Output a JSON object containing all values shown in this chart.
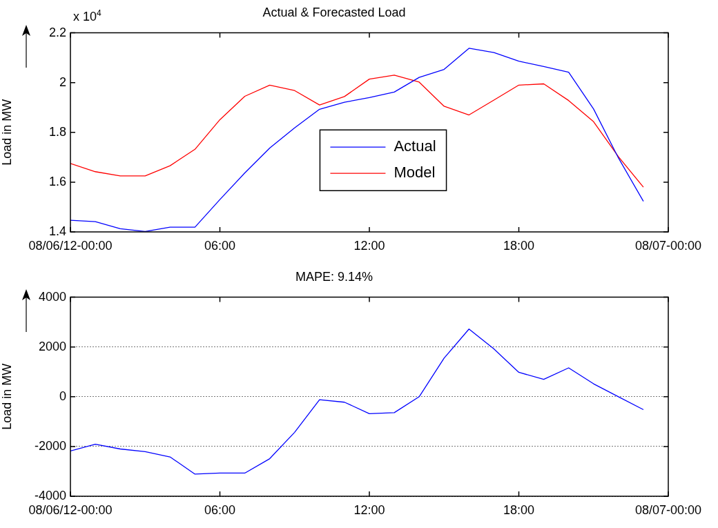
{
  "chart_data": [
    {
      "type": "line",
      "title": "Actual & Forecasted Load",
      "ylabel": "Load in MW",
      "annotations": [
        "x 10$^{4}$"
      ],
      "x": [
        0,
        1,
        2,
        3,
        4,
        5,
        6,
        7,
        8,
        9,
        10,
        11,
        12,
        13,
        14,
        15,
        16,
        17,
        18,
        19,
        20,
        21,
        22,
        23
      ],
      "series": [
        {
          "name": "Actual",
          "color": "#0000ff",
          "values": [
            1.447,
            1.441,
            1.413,
            1.402,
            1.419,
            1.419,
            1.53,
            1.637,
            1.737,
            1.818,
            1.893,
            1.921,
            1.94,
            1.962,
            2.021,
            2.053,
            2.138,
            2.121,
            2.086,
            2.065,
            2.042,
            1.894,
            1.697,
            1.523
          ]
        },
        {
          "name": "Model",
          "color": "#ff0000",
          "values": [
            1.675,
            1.642,
            1.625,
            1.625,
            1.666,
            1.732,
            1.851,
            1.945,
            1.99,
            1.968,
            1.91,
            1.944,
            2.014,
            2.03,
            2.002,
            1.905,
            1.87,
            1.93,
            1.99,
            1.995,
            1.928,
            1.843,
            1.702,
            1.58
          ]
        }
      ],
      "xlim": [
        0,
        24
      ],
      "xticks": [
        {
          "value": 0,
          "label": "08/06/12-00:00"
        },
        {
          "value": 6,
          "label": "06:00"
        },
        {
          "value": 12,
          "label": "12:00"
        },
        {
          "value": 18,
          "label": "18:00"
        },
        {
          "value": 24,
          "label": "08/07-00:00"
        }
      ],
      "ylim": [
        1.4,
        2.2
      ],
      "yticks": [
        1.4,
        1.6,
        1.8,
        2,
        2.2
      ],
      "grid": false,
      "legend": "center",
      "marker": "none",
      "line_style": "solid"
    },
    {
      "type": "line",
      "title": "MAPE: 9.14%",
      "ylabel": "Load in MW",
      "x": [
        0,
        1,
        2,
        3,
        4,
        5,
        6,
        7,
        8,
        9,
        10,
        11,
        12,
        13,
        14,
        15,
        16,
        17,
        18,
        19,
        20,
        21,
        22,
        23
      ],
      "series": [
        {
          "color": "#0000ff",
          "values": [
            -2180,
            -1910,
            -2100,
            -2210,
            -2420,
            -3110,
            -3070,
            -3070,
            -2490,
            -1430,
            -120,
            -220,
            -680,
            -640,
            0,
            1550,
            2720,
            1920,
            980,
            700,
            1160,
            520,
            0,
            -520
          ]
        }
      ],
      "xlim": [
        0,
        24
      ],
      "xticks": [
        {
          "value": 0,
          "label": "08/06/12-00:00"
        },
        {
          "value": 6,
          "label": "06:00"
        },
        {
          "value": 12,
          "label": "12:00"
        },
        {
          "value": 18,
          "label": "18:00"
        },
        {
          "value": 24,
          "label": "08/07-00:00"
        }
      ],
      "ylim": [
        -4000,
        4000
      ],
      "yticks": [
        -4000,
        -2000,
        0,
        2000,
        4000
      ],
      "grid": "y",
      "legend": false,
      "marker": "none",
      "line_style": "solid"
    }
  ]
}
